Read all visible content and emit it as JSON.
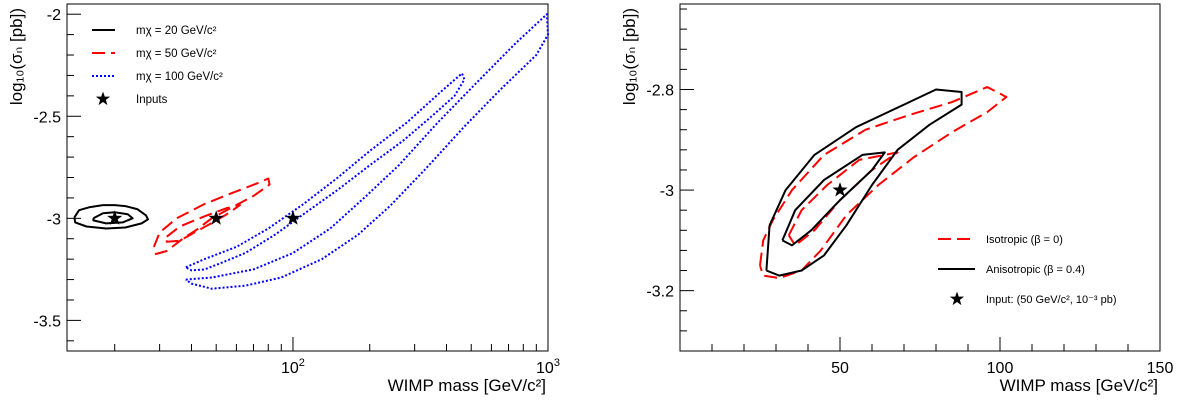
{
  "chart_data": [
    {
      "type": "line",
      "xlabel": "WIMP mass [GeV/c²]",
      "ylabel": "log₁₀(σₙ [pb])",
      "xscale": "log",
      "xlim": [
        13,
        1000
      ],
      "ylim": [
        -3.65,
        -1.95
      ],
      "xtick_labels": [
        "10²",
        "10³"
      ],
      "ytick_labels": [
        "-2",
        "-2.5",
        "-3",
        "-3.5"
      ],
      "legend_position": "top-left",
      "series": [
        {
          "name": "mχ = 20 GeV/c²",
          "color": "#000000",
          "style": "solid",
          "contours": [
            [
              [
                13.9,
                -2.995
              ],
              [
                14.5,
                -2.96
              ],
              [
                16,
                -2.945
              ],
              [
                18,
                -2.935
              ],
              [
                20,
                -2.935
              ],
              [
                22,
                -2.94
              ],
              [
                24.5,
                -2.955
              ],
              [
                26.5,
                -2.985
              ],
              [
                27,
                -3.005
              ],
              [
                25.5,
                -3.025
              ],
              [
                22,
                -3.045
              ],
              [
                18.5,
                -3.05
              ],
              [
                15.5,
                -3.04
              ],
              [
                14,
                -3.02
              ],
              [
                13.9,
                -2.995
              ]
            ],
            [
              [
                16.5,
                -3.0
              ],
              [
                18,
                -2.975
              ],
              [
                20,
                -2.97
              ],
              [
                22.5,
                -2.98
              ],
              [
                23.5,
                -3.0
              ],
              [
                21.5,
                -3.02
              ],
              [
                18.5,
                -3.025
              ],
              [
                16.5,
                -3.01
              ],
              [
                16.5,
                -3.0
              ]
            ]
          ]
        },
        {
          "name": "mχ = 50 GeV/c²",
          "color": "#ff0000",
          "style": "dashed",
          "contours": [
            [
              [
                28.5,
                -3.14
              ],
              [
                30,
                -3.07
              ],
              [
                35,
                -3.0
              ],
              [
                45,
                -2.93
              ],
              [
                58,
                -2.875
              ],
              [
                72,
                -2.83
              ],
              [
                80,
                -2.805
              ],
              [
                81,
                -2.835
              ],
              [
                70,
                -2.89
              ],
              [
                58,
                -2.945
              ],
              [
                48,
                -3.0
              ],
              [
                42,
                -3.055
              ],
              [
                37,
                -3.1
              ],
              [
                32,
                -3.16
              ],
              [
                29,
                -3.175
              ],
              [
                28.5,
                -3.14
              ]
            ],
            [
              [
                32,
                -3.09
              ],
              [
                36,
                -3.04
              ],
              [
                45,
                -2.99
              ],
              [
                55,
                -2.95
              ],
              [
                62,
                -2.935
              ],
              [
                55,
                -2.98
              ],
              [
                47,
                -3.03
              ],
              [
                41,
                -3.07
              ],
              [
                36,
                -3.11
              ],
              [
                32,
                -3.115
              ],
              [
                32,
                -3.09
              ]
            ]
          ]
        },
        {
          "name": "mχ = 100 GeV/c²",
          "color": "#0000ff",
          "style": "dotted",
          "contours": [
            [
              [
                38,
                -3.24
              ],
              [
                45,
                -3.2
              ],
              [
                60,
                -3.14
              ],
              [
                80,
                -3.05
              ],
              [
                110,
                -2.93
              ],
              [
                150,
                -2.8
              ],
              [
                200,
                -2.67
              ],
              [
                280,
                -2.53
              ],
              [
                380,
                -2.38
              ],
              [
                460,
                -2.29
              ],
              [
                470,
                -2.32
              ],
              [
                430,
                -2.4
              ],
              [
                350,
                -2.5
              ],
              [
                270,
                -2.62
              ],
              [
                200,
                -2.74
              ],
              [
                150,
                -2.86
              ],
              [
                110,
                -2.98
              ],
              [
                85,
                -3.08
              ],
              [
                65,
                -3.17
              ],
              [
                52,
                -3.22
              ],
              [
                45,
                -3.25
              ],
              [
                40,
                -3.255
              ],
              [
                38,
                -3.24
              ]
            ],
            [
              [
                38,
                -3.3
              ],
              [
                48,
                -3.29
              ],
              [
                70,
                -3.25
              ],
              [
                100,
                -3.17
              ],
              [
                140,
                -3.05
              ],
              [
                190,
                -2.9
              ],
              [
                260,
                -2.74
              ],
              [
                370,
                -2.53
              ],
              [
                530,
                -2.33
              ],
              [
                750,
                -2.14
              ],
              [
                990,
                -2.0
              ],
              [
                1000,
                -2.1
              ],
              [
                900,
                -2.2
              ],
              [
                650,
                -2.37
              ],
              [
                470,
                -2.55
              ],
              [
                330,
                -2.76
              ],
              [
                240,
                -2.94
              ],
              [
                180,
                -3.08
              ],
              [
                130,
                -3.2
              ],
              [
                90,
                -3.29
              ],
              [
                65,
                -3.33
              ],
              [
                48,
                -3.345
              ],
              [
                40,
                -3.32
              ],
              [
                38,
                -3.3
              ]
            ]
          ]
        }
      ],
      "markers": [
        {
          "name": "Inputs",
          "symbol": "star",
          "points": [
            [
              20,
              -3.0
            ],
            [
              50,
              -3.0
            ],
            [
              100,
              -3.0
            ]
          ]
        }
      ]
    },
    {
      "type": "line",
      "xlabel": "WIMP mass [GeV/c²]",
      "ylabel": "log₁₀(σₙ [pb])",
      "xlim": [
        0,
        150
      ],
      "ylim": [
        -3.32,
        -2.63
      ],
      "xtick_labels": [
        "50",
        "100",
        "150"
      ],
      "ytick_labels": [
        "-2.8",
        "-3",
        "-3.2"
      ],
      "legend_position": "bottom-right",
      "series": [
        {
          "name": "Isotropic (β = 0)",
          "color": "#ff0000",
          "style": "dashed",
          "contours": [
            [
              [
                25,
                -3.15
              ],
              [
                26,
                -3.1
              ],
              [
                29,
                -3.06
              ],
              [
                35,
                -3.0
              ],
              [
                45,
                -2.93
              ],
              [
                58,
                -2.88
              ],
              [
                72,
                -2.85
              ],
              [
                85,
                -2.825
              ],
              [
                96,
                -2.795
              ],
              [
                102,
                -2.815
              ],
              [
                96,
                -2.845
              ],
              [
                85,
                -2.885
              ],
              [
                73,
                -2.935
              ],
              [
                62,
                -2.99
              ],
              [
                52,
                -3.05
              ],
              [
                44,
                -3.12
              ],
              [
                38,
                -3.16
              ],
              [
                31,
                -3.175
              ],
              [
                26,
                -3.17
              ],
              [
                25,
                -3.15
              ]
            ],
            [
              [
                34,
                -3.09
              ],
              [
                38,
                -3.04
              ],
              [
                46,
                -2.99
              ],
              [
                56,
                -2.94
              ],
              [
                68,
                -2.925
              ],
              [
                60,
                -2.96
              ],
              [
                50,
                -3.02
              ],
              [
                42,
                -3.08
              ],
              [
                36,
                -3.11
              ],
              [
                34,
                -3.09
              ]
            ]
          ]
        },
        {
          "name": "Anisotropic (β = 0.4)",
          "color": "#000000",
          "style": "solid",
          "contours": [
            [
              [
                27,
                -3.16
              ],
              [
                28,
                -3.07
              ],
              [
                33,
                -3.0
              ],
              [
                42,
                -2.93
              ],
              [
                55,
                -2.875
              ],
              [
                70,
                -2.83
              ],
              [
                80,
                -2.8
              ],
              [
                88,
                -2.805
              ],
              [
                88,
                -2.83
              ],
              [
                78,
                -2.87
              ],
              [
                68,
                -2.92
              ],
              [
                60,
                -2.99
              ],
              [
                52,
                -3.07
              ],
              [
                45,
                -3.13
              ],
              [
                38,
                -3.16
              ],
              [
                31,
                -3.17
              ],
              [
                27,
                -3.16
              ]
            ],
            [
              [
                32,
                -3.1
              ],
              [
                36,
                -3.04
              ],
              [
                45,
                -2.98
              ],
              [
                57,
                -2.93
              ],
              [
                64,
                -2.925
              ],
              [
                60,
                -2.96
              ],
              [
                50,
                -3.02
              ],
              [
                41,
                -3.08
              ],
              [
                35,
                -3.11
              ],
              [
                32,
                -3.1
              ]
            ]
          ]
        }
      ],
      "markers": [
        {
          "name": "Input: (50 GeV/c², 10⁻³ pb)",
          "symbol": "star",
          "points": [
            [
              50,
              -3.0
            ]
          ]
        }
      ]
    }
  ]
}
